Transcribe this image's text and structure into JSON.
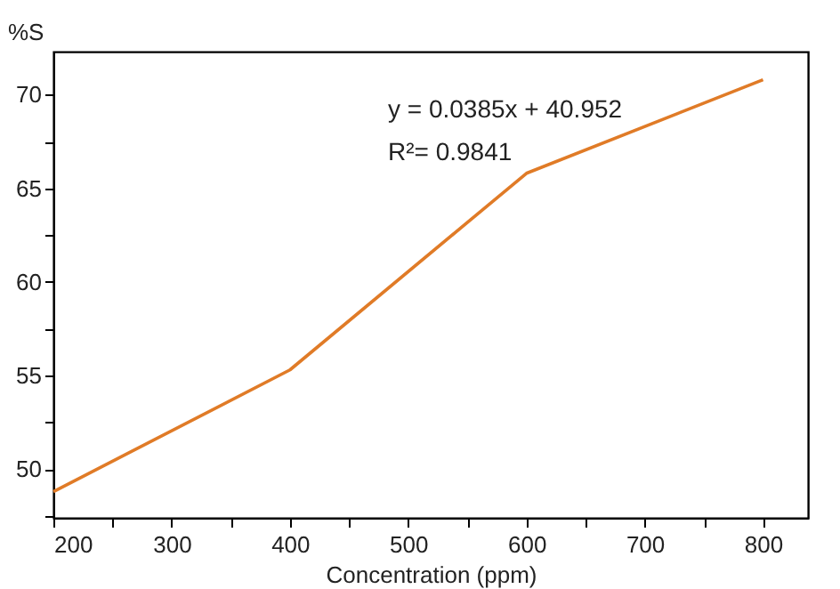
{
  "chart_data": {
    "type": "line",
    "xlabel": "Concentration (ppm)",
    "ylabel": "%S",
    "x": [
      200,
      400,
      600,
      800
    ],
    "series": [
      {
        "color": "#e07b27",
        "values": [
          48.8,
          55.3,
          65.8,
          70.8
        ]
      }
    ],
    "xlim": [
      200,
      838
    ],
    "ylim": [
      47.4,
      72.3
    ],
    "xticks": [
      200,
      {
        "value": 250,
        "label": null
      },
      300,
      {
        "value": 350,
        "label": null
      },
      400,
      {
        "value": 450,
        "label": null
      },
      500,
      {
        "value": 550,
        "label": null
      },
      600,
      {
        "value": 650,
        "label": null
      },
      700,
      {
        "value": 750,
        "label": null
      },
      800
    ],
    "yticks": [
      {
        "value": 47.5,
        "label": null
      },
      50,
      {
        "value": 52.5,
        "label": null
      },
      55,
      {
        "value": 57.5,
        "label": null
      },
      60,
      {
        "value": 62.5,
        "label": null
      },
      65,
      {
        "value": 67.5,
        "label": null
      },
      70
    ],
    "annotations": [
      "y = 0.0385x + 40.952",
      "R²= 0.9841"
    ],
    "grid": false,
    "marker": "none",
    "line_style": "solid"
  }
}
